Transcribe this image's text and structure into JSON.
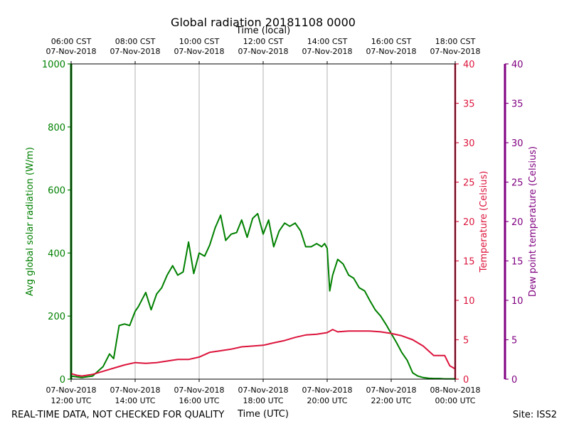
{
  "chart_data": {
    "type": "line",
    "title": "Global radiation 20181108 0000",
    "top_axis_label": "Time (local)",
    "xlabel": "Time (UTC)",
    "x_range_hours": [
      12,
      24
    ],
    "top_ticks": [
      {
        "hour": 12,
        "line1": "06:00 CST",
        "line2": "07-Nov-2018"
      },
      {
        "hour": 14,
        "line1": "08:00 CST",
        "line2": "07-Nov-2018"
      },
      {
        "hour": 16,
        "line1": "10:00 CST",
        "line2": "07-Nov-2018"
      },
      {
        "hour": 18,
        "line1": "12:00 CST",
        "line2": "07-Nov-2018"
      },
      {
        "hour": 20,
        "line1": "14:00 CST",
        "line2": "07-Nov-2018"
      },
      {
        "hour": 22,
        "line1": "16:00 CST",
        "line2": "07-Nov-2018"
      },
      {
        "hour": 24,
        "line1": "18:00 CST",
        "line2": "07-Nov-2018"
      }
    ],
    "bottom_ticks": [
      {
        "hour": 12,
        "line1": "07-Nov-2018",
        "line2": "12:00 UTC"
      },
      {
        "hour": 14,
        "line1": "07-Nov-2018",
        "line2": "14:00 UTC"
      },
      {
        "hour": 16,
        "line1": "07-Nov-2018",
        "line2": "16:00 UTC"
      },
      {
        "hour": 18,
        "line1": "07-Nov-2018",
        "line2": "18:00 UTC"
      },
      {
        "hour": 20,
        "line1": "07-Nov-2018",
        "line2": "20:00 UTC"
      },
      {
        "hour": 22,
        "line1": "07-Nov-2018",
        "line2": "22:00 UTC"
      },
      {
        "hour": 24,
        "line1": "08-Nov-2018",
        "line2": "00:00 UTC"
      }
    ],
    "y_axes": [
      {
        "id": "radiation",
        "label": "Avg global solar radiation (W/m)",
        "range": [
          0,
          1000
        ],
        "ticks": [
          0,
          200,
          400,
          600,
          800,
          1000
        ],
        "color": "#008000"
      },
      {
        "id": "temperature",
        "label": "Temperature (Celsius)",
        "range": [
          0,
          40
        ],
        "ticks": [
          0,
          5,
          10,
          15,
          20,
          25,
          30,
          35,
          40
        ],
        "color": "#dc143c"
      },
      {
        "id": "dewpoint",
        "label": "Dew point temperature (Celsius)",
        "range": [
          0,
          40
        ],
        "ticks": [
          0,
          5,
          10,
          15,
          20,
          25,
          30,
          35,
          40
        ],
        "color": "#800080"
      }
    ],
    "series": [
      {
        "name": "Avg global solar radiation",
        "axis": "radiation",
        "color": "#008000",
        "x": [
          12.0,
          12.33,
          12.67,
          13.0,
          13.2,
          13.33,
          13.5,
          13.67,
          13.83,
          14.0,
          14.1,
          14.33,
          14.5,
          14.67,
          14.83,
          15.0,
          15.17,
          15.33,
          15.5,
          15.67,
          15.83,
          16.0,
          16.17,
          16.33,
          16.5,
          16.67,
          16.83,
          17.0,
          17.17,
          17.33,
          17.5,
          17.67,
          17.83,
          18.0,
          18.17,
          18.33,
          18.5,
          18.67,
          18.83,
          19.0,
          19.17,
          19.33,
          19.5,
          19.67,
          19.83,
          19.92,
          20.0,
          20.08,
          20.17,
          20.33,
          20.5,
          20.67,
          20.83,
          21.0,
          21.17,
          21.33,
          21.5,
          21.67,
          21.83,
          22.0,
          22.17,
          22.33,
          22.5,
          22.67,
          22.83,
          23.0,
          23.17,
          23.33,
          23.5,
          23.67,
          23.83,
          24.0
        ],
        "y": [
          10,
          5,
          10,
          40,
          80,
          65,
          170,
          175,
          170,
          215,
          230,
          275,
          220,
          270,
          290,
          330,
          360,
          330,
          340,
          435,
          335,
          400,
          390,
          425,
          480,
          520,
          440,
          460,
          465,
          505,
          450,
          510,
          525,
          460,
          505,
          420,
          470,
          495,
          485,
          495,
          470,
          420,
          420,
          430,
          420,
          430,
          415,
          280,
          330,
          380,
          365,
          330,
          320,
          290,
          280,
          250,
          220,
          200,
          175,
          145,
          115,
          85,
          60,
          20,
          10,
          5,
          3,
          2,
          2,
          1,
          1,
          1
        ]
      },
      {
        "name": "Temperature",
        "axis": "temperature",
        "color": "#dc143c",
        "x": [
          12.0,
          12.17,
          12.33,
          12.67,
          13.0,
          13.33,
          13.67,
          14.0,
          14.33,
          14.67,
          15.0,
          15.33,
          15.67,
          16.0,
          16.33,
          16.67,
          17.0,
          17.33,
          17.67,
          18.0,
          18.33,
          18.67,
          19.0,
          19.33,
          19.67,
          20.0,
          20.17,
          20.33,
          20.67,
          21.0,
          21.33,
          21.67,
          22.0,
          22.33,
          22.67,
          23.0,
          23.33,
          23.67,
          23.83,
          24.0
        ],
        "y": [
          0.7,
          0.5,
          0.4,
          0.6,
          1.0,
          1.4,
          1.8,
          2.1,
          2.0,
          2.1,
          2.3,
          2.5,
          2.5,
          2.8,
          3.4,
          3.6,
          3.8,
          4.1,
          4.2,
          4.3,
          4.6,
          4.9,
          5.3,
          5.6,
          5.7,
          5.9,
          6.3,
          6.0,
          6.1,
          6.1,
          6.1,
          6.0,
          5.8,
          5.5,
          5.0,
          4.2,
          3.0,
          3.0,
          1.7,
          1.3
        ]
      }
    ]
  },
  "footer": {
    "left": "REAL-TIME DATA, NOT CHECKED FOR QUALITY",
    "right": "Site: ISS2"
  }
}
